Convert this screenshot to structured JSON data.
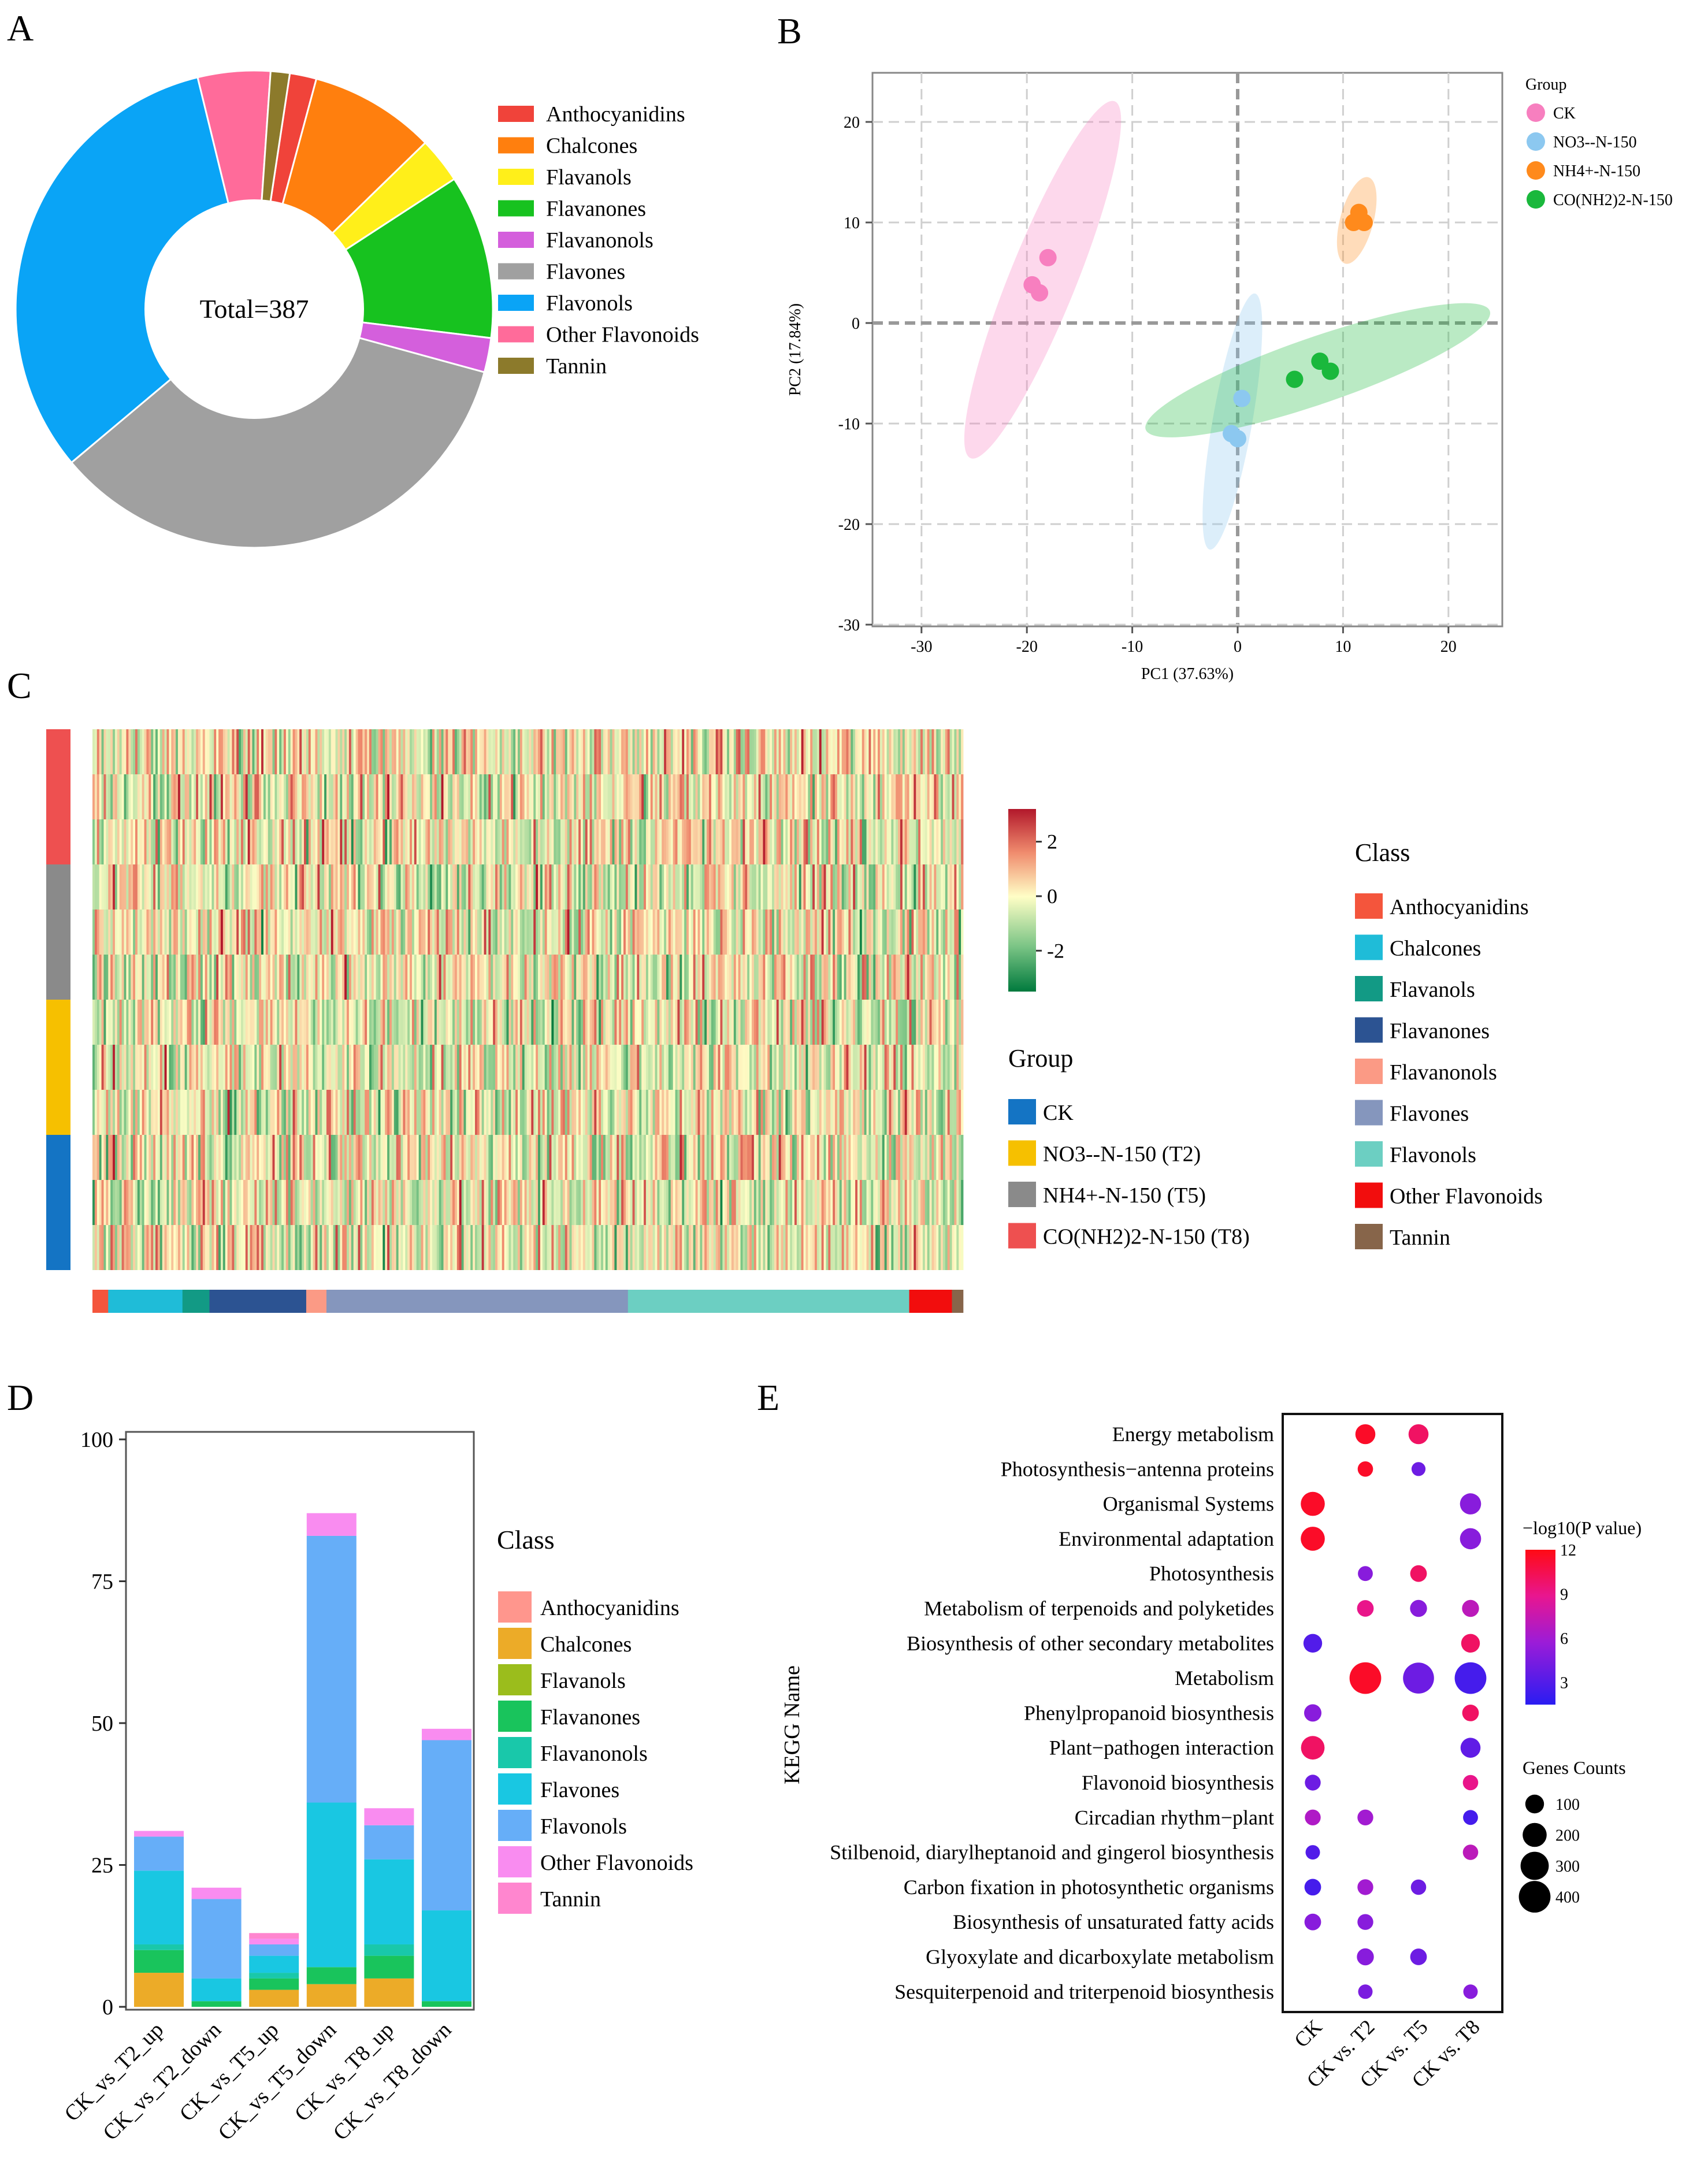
{
  "colors": {
    "pie": [
      "#f0433a",
      "#ff7f0e",
      "#ffef1a",
      "#17c21f",
      "#d45fdc",
      "#a0a0a0",
      "#0aa4f6",
      "#ff6b9a",
      "#8c7a2b"
    ],
    "pca": [
      "#f77fbf",
      "#8cc8f0",
      "#ff8a1c",
      "#1ab83c"
    ],
    "group_c": [
      "#1474c4",
      "#f6c000",
      "#8a8a8a",
      "#ee5050"
    ],
    "class_c": [
      "#f4553c",
      "#1fbcd8",
      "#129a85",
      "#2c5392",
      "#fb9a85",
      "#8596bd",
      "#6ccfc2",
      "#f20d0d",
      "#87654a"
    ],
    "stack": [
      "#ff968d",
      "#ecab28",
      "#9bbd1c",
      "#19c45c",
      "#19c8aa",
      "#19c7e2",
      "#66aef8",
      "#f98cf0",
      "#ff86cf"
    ],
    "heat_low": "#007a3d",
    "heat_mid": "#fffec6",
    "heat_high": "#b2182b"
  },
  "panels": {
    "a": "A",
    "b": "B",
    "c": "C",
    "d": "D",
    "e": "E"
  },
  "chart_data": [
    {
      "panel": "A",
      "type": "pie",
      "title": "Total=387",
      "labels": [
        "Anthocyanidins",
        "Chalcones",
        "Flavanols",
        "Flavanones",
        "Flavanonols",
        "Flavones",
        "Flavonols",
        "Other Flavonoids",
        "Tannin"
      ],
      "values": [
        7,
        33,
        12,
        43,
        9,
        134,
        125,
        19,
        5
      ]
    },
    {
      "panel": "B",
      "type": "scatter",
      "title": "",
      "xlabel": "PC1  (37.63%)",
      "ylabel": "PC2  (17.84%)",
      "xlim": [
        -35,
        25
      ],
      "ylim": [
        -30,
        25
      ],
      "xticks": [
        -30,
        -20,
        -10,
        0,
        10,
        20
      ],
      "yticks": [
        -30,
        -20,
        -10,
        0,
        10,
        20
      ],
      "grid": true,
      "legend_title": "Group",
      "series": [
        {
          "name": "CK",
          "x": [
            -18,
            -19.5,
            -18.8
          ],
          "y": [
            6.5,
            3.8,
            3
          ],
          "ellipse": {
            "cx": -18.5,
            "cy": 4.3,
            "rx": 18.5,
            "ry": 3.2,
            "angle": -68
          }
        },
        {
          "name": "NO3--N-150",
          "x": [
            0.4,
            -0.6,
            0
          ],
          "y": [
            -7.5,
            -11,
            -11.5
          ],
          "ellipse": {
            "cx": -0.5,
            "cy": -9.8,
            "rx": 12.5,
            "ry": 1.9,
            "angle": -80
          }
        },
        {
          "name": "NH4+-N-150",
          "x": [
            11.5,
            11,
            12
          ],
          "y": [
            11,
            10,
            10
          ],
          "ellipse": {
            "cx": 11.3,
            "cy": 10.2,
            "rx": 4.3,
            "ry": 1.6,
            "angle": -75
          }
        },
        {
          "name": "CO(NH2)2-N-150",
          "x": [
            5.4,
            7.8,
            8.8
          ],
          "y": [
            -5.6,
            -3.8,
            -4.8
          ],
          "ellipse": {
            "cx": 7.6,
            "cy": -4.7,
            "rx": 17.5,
            "ry": 3.2,
            "angle": -19
          }
        }
      ]
    },
    {
      "panel": "C",
      "type": "heatmap",
      "rows": 12,
      "columns": 387,
      "color_scale": {
        "min": -3.5,
        "max": 3.2,
        "ticks": [
          2,
          0,
          -2
        ]
      },
      "row_groups": [
        "CO(NH2)2-N-150 (T8)",
        "CO(NH2)2-N-150 (T8)",
        "CO(NH2)2-N-150 (T8)",
        "NH4+-N-150 (T5)",
        "NH4+-N-150 (T5)",
        "NH4+-N-150 (T5)",
        "NO3--N-150 (T2)",
        "NO3--N-150 (T2)",
        "NO3--N-150 (T2)",
        "CK",
        "CK",
        "CK"
      ],
      "column_class_counts": [
        7,
        33,
        12,
        43,
        9,
        134,
        125,
        19,
        5
      ],
      "group_legend_title": "Group",
      "group_legend": [
        "CK",
        "NO3--N-150 (T2)",
        "NH4+-N-150 (T5)",
        "CO(NH2)2-N-150 (T8)"
      ],
      "class_legend_title": "Class",
      "class_legend": [
        "Anthocyanidins",
        "Chalcones",
        "Flavanols",
        "Flavanones",
        "Flavanonols",
        "Flavones",
        "Flavonols",
        "Other  Flavonoids",
        "Tannin"
      ]
    },
    {
      "panel": "D",
      "type": "bar",
      "stacked": true,
      "categories": [
        "CK_vs_T2_up",
        "CK_vs_T2_down",
        "CK_vs_T5_up",
        "CK_vs_T5_down",
        "CK_vs_T8_up",
        "CK_vs_T8_down"
      ],
      "ylim": [
        0,
        103
      ],
      "yticks": [
        0,
        25,
        50,
        75,
        100
      ],
      "legend_title": "Class",
      "series": [
        {
          "name": "Anthocyanidins",
          "values": [
            0,
            0,
            0,
            0,
            0,
            0
          ]
        },
        {
          "name": "Chalcones",
          "values": [
            6,
            0,
            3,
            4,
            5,
            0
          ]
        },
        {
          "name": "Flavanols",
          "values": [
            0,
            0,
            0,
            0,
            0,
            0
          ]
        },
        {
          "name": "Flavanones",
          "values": [
            4,
            1,
            2,
            3,
            4,
            1
          ]
        },
        {
          "name": "Flavanonols",
          "values": [
            1,
            0,
            1,
            0,
            2,
            0
          ]
        },
        {
          "name": "Flavones",
          "values": [
            13,
            4,
            3,
            29,
            15,
            16
          ]
        },
        {
          "name": "Flavonols",
          "values": [
            6,
            14,
            2,
            47,
            6,
            30
          ]
        },
        {
          "name": "Other Flavonoids",
          "values": [
            1,
            2,
            1,
            4,
            3,
            2
          ]
        },
        {
          "name": "Tannin",
          "values": [
            0,
            0,
            1,
            0,
            0,
            0
          ]
        }
      ]
    },
    {
      "panel": "E",
      "type": "scatter",
      "subtype": "bubble",
      "ylabel": "KEGG Name",
      "x_categories": [
        "CK",
        "CK vs. T2",
        "CK vs. T5",
        "CK vs. T8"
      ],
      "y_categories": [
        "Energy metabolism",
        "Photosynthesis−antenna proteins",
        "Organismal Systems",
        "Environmental adaptation",
        "Photosynthesis",
        "Metabolism of terpenoids and polyketides",
        "Biosynthesis of other secondary metabolites",
        "Metabolism",
        "Phenylpropanoid biosynthesis",
        "Plant−pathogen interaction",
        "Flavonoid biosynthesis",
        "Circadian rhythm−plant",
        "Stilbenoid, diarylheptanoid and gingerol biosynthesis",
        "Carbon fixation in photosynthetic organisms",
        "Biosynthesis of unsaturated fatty acids",
        "Glyoxylate and dicarboxylate metabolism",
        "Sesquiterpenoid and triterpenoid biosynthesis"
      ],
      "color_title": "−log10(P value)",
      "color_range": [
        1.5,
        12
      ],
      "color_ticks": [
        12,
        9,
        6,
        3
      ],
      "size_title": "Genes Counts",
      "size_ticks": [
        100,
        200,
        300,
        400
      ],
      "points": [
        {
          "x": "CK vs. T2",
          "y": "Energy metabolism",
          "size": 120,
          "color": 11.5
        },
        {
          "x": "CK vs. T5",
          "y": "Energy metabolism",
          "size": 120,
          "color": 10
        },
        {
          "x": "CK vs. T2",
          "y": "Photosynthesis−antenna proteins",
          "size": 55,
          "color": 11.5
        },
        {
          "x": "CK vs. T5",
          "y": "Photosynthesis−antenna proteins",
          "size": 40,
          "color": 4
        },
        {
          "x": "CK",
          "y": "Organismal Systems",
          "size": 200,
          "color": 11.5
        },
        {
          "x": "CK vs. T8",
          "y": "Organismal Systems",
          "size": 140,
          "color": 5
        },
        {
          "x": "CK",
          "y": "Environmental adaptation",
          "size": 200,
          "color": 11.5
        },
        {
          "x": "CK vs. T8",
          "y": "Environmental adaptation",
          "size": 140,
          "color": 5
        },
        {
          "x": "CK vs. T2",
          "y": "Photosynthesis",
          "size": 50,
          "color": 5
        },
        {
          "x": "CK vs. T5",
          "y": "Photosynthesis",
          "size": 70,
          "color": 10
        },
        {
          "x": "CK vs. T2",
          "y": "Metabolism of terpenoids and polyketides",
          "size": 70,
          "color": 9
        },
        {
          "x": "CK vs. T5",
          "y": "Metabolism of terpenoids and polyketides",
          "size": 75,
          "color": 5
        },
        {
          "x": "CK vs. T8",
          "y": "Metabolism of terpenoids and polyketides",
          "size": 75,
          "color": 7
        },
        {
          "x": "CK",
          "y": "Biosynthesis of other secondary metabolites",
          "size": 100,
          "color": 3
        },
        {
          "x": "CK vs. T8",
          "y": "Biosynthesis of other secondary metabolites",
          "size": 100,
          "color": 10
        },
        {
          "x": "CK vs. T2",
          "y": "Metabolism",
          "size": 400,
          "color": 11.5
        },
        {
          "x": "CK vs. T5",
          "y": "Metabolism",
          "size": 380,
          "color": 4
        },
        {
          "x": "CK vs. T8",
          "y": "Metabolism",
          "size": 400,
          "color": 2.5
        },
        {
          "x": "CK",
          "y": "Phenylpropanoid biosynthesis",
          "size": 80,
          "color": 5
        },
        {
          "x": "CK vs. T8",
          "y": "Phenylpropanoid biosynthesis",
          "size": 70,
          "color": 10
        },
        {
          "x": "CK",
          "y": "Plant−pathogen interaction",
          "size": 190,
          "color": 10
        },
        {
          "x": "CK vs. T8",
          "y": "Plant−pathogen interaction",
          "size": 120,
          "color": 3.5
        },
        {
          "x": "CK",
          "y": "Flavonoid biosynthesis",
          "size": 60,
          "color": 4
        },
        {
          "x": "CK vs. T8",
          "y": "Flavonoid biosynthesis",
          "size": 55,
          "color": 9
        },
        {
          "x": "CK",
          "y": "Circadian rhythm−plant",
          "size": 60,
          "color": 6.5
        },
        {
          "x": "CK vs. T2",
          "y": "Circadian rhythm−plant",
          "size": 60,
          "color": 6
        },
        {
          "x": "CK vs. T8",
          "y": "Circadian rhythm−plant",
          "size": 50,
          "color": 2.5
        },
        {
          "x": "CK",
          "y": "Stilbenoid, diarylheptanoid and gingerol biosynthesis",
          "size": 45,
          "color": 3
        },
        {
          "x": "CK vs. T8",
          "y": "Stilbenoid, diarylheptanoid and gingerol biosynthesis",
          "size": 55,
          "color": 7
        },
        {
          "x": "CK",
          "y": "Carbon fixation in photosynthetic organisms",
          "size": 70,
          "color": 2.5
        },
        {
          "x": "CK vs. T2",
          "y": "Carbon fixation in photosynthetic organisms",
          "size": 60,
          "color": 6
        },
        {
          "x": "CK vs. T5",
          "y": "Carbon fixation in photosynthetic organisms",
          "size": 55,
          "color": 4
        },
        {
          "x": "CK",
          "y": "Biosynthesis of unsaturated fatty acids",
          "size": 70,
          "color": 5
        },
        {
          "x": "CK vs. T2",
          "y": "Biosynthesis of unsaturated fatty acids",
          "size": 60,
          "color": 5
        },
        {
          "x": "CK vs. T2",
          "y": "Glyoxylate and dicarboxylate metabolism",
          "size": 75,
          "color": 5
        },
        {
          "x": "CK vs. T5",
          "y": "Glyoxylate and dicarboxylate metabolism",
          "size": 70,
          "color": 4
        },
        {
          "x": "CK vs. T2",
          "y": "Sesquiterpenoid and triterpenoid biosynthesis",
          "size": 45,
          "color": 4.5
        },
        {
          "x": "CK vs. T8",
          "y": "Sesquiterpenoid and triterpenoid biosynthesis",
          "size": 45,
          "color": 5
        }
      ]
    }
  ]
}
